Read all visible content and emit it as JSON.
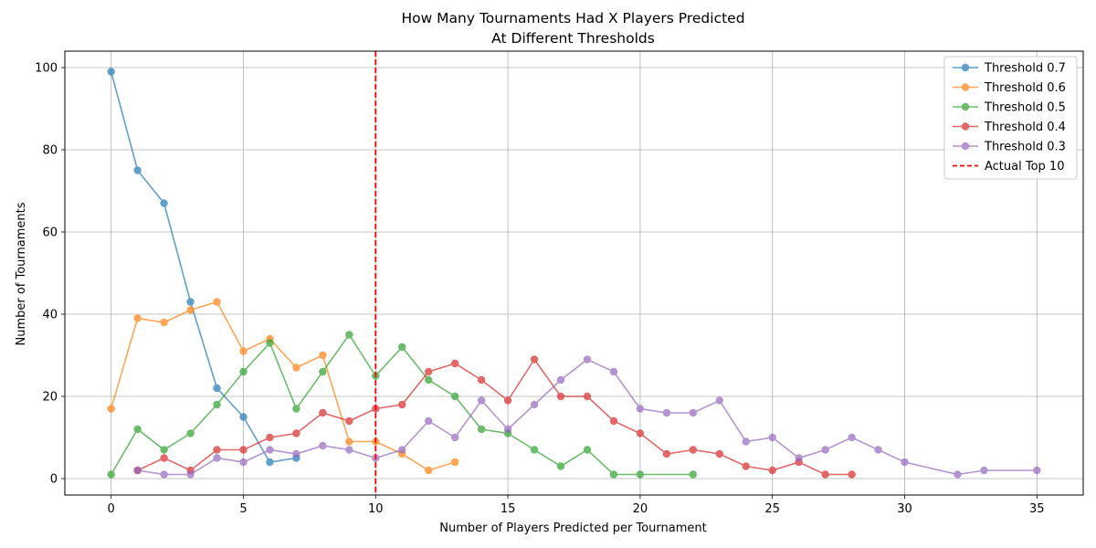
{
  "chart_data": {
    "type": "line",
    "title": "How Many Tournaments Had X Players Predicted",
    "subtitle": "At Different Thresholds",
    "xlabel": "Number of Players Predicted per Tournament",
    "ylabel": "Number of Tournaments",
    "xlim": [
      -1.75,
      36.75
    ],
    "ylim": [
      -4,
      104
    ],
    "xticks": [
      "0",
      "5",
      "10",
      "15",
      "20",
      "25",
      "30",
      "35"
    ],
    "yticks": [
      "0",
      "20",
      "40",
      "60",
      "80",
      "100"
    ],
    "grid": true,
    "legend_position": "top-right",
    "series": [
      {
        "name": "Threshold 0.7",
        "color": "#1f77b4",
        "x": [
          0,
          1,
          2,
          3,
          4,
          5,
          6,
          7
        ],
        "y": [
          99,
          75,
          67,
          43,
          22,
          15,
          4,
          5
        ]
      },
      {
        "name": "Threshold 0.6",
        "color": "#ff7f0e",
        "x": [
          0,
          1,
          2,
          3,
          4,
          5,
          6,
          7,
          8,
          9,
          10,
          11,
          12,
          13
        ],
        "y": [
          17,
          39,
          38,
          41,
          43,
          31,
          34,
          27,
          30,
          9,
          9,
          6,
          2,
          4
        ]
      },
      {
        "name": "Threshold 0.5",
        "color": "#2ca02c",
        "x": [
          0,
          1,
          2,
          3,
          4,
          5,
          6,
          7,
          8,
          9,
          10,
          11,
          12,
          13,
          14,
          15,
          16,
          17,
          18,
          19,
          20,
          22
        ],
        "y": [
          1,
          12,
          7,
          11,
          18,
          26,
          33,
          17,
          26,
          35,
          25,
          32,
          24,
          20,
          12,
          11,
          7,
          3,
          7,
          1,
          1,
          1
        ]
      },
      {
        "name": "Threshold 0.4",
        "color": "#d62728",
        "x": [
          1,
          2,
          3,
          4,
          5,
          6,
          7,
          8,
          9,
          10,
          11,
          12,
          13,
          14,
          15,
          16,
          17,
          18,
          19,
          20,
          21,
          22,
          23,
          24,
          25,
          26,
          27,
          28
        ],
        "y": [
          2,
          5,
          2,
          7,
          7,
          10,
          11,
          16,
          14,
          17,
          18,
          26,
          28,
          24,
          19,
          29,
          20,
          20,
          14,
          11,
          6,
          7,
          6,
          3,
          2,
          4,
          1,
          1
        ]
      },
      {
        "name": "Threshold 0.3",
        "color": "#9467bd",
        "x": [
          1,
          2,
          3,
          4,
          5,
          6,
          7,
          8,
          9,
          10,
          11,
          12,
          13,
          14,
          15,
          16,
          17,
          18,
          19,
          20,
          21,
          22,
          23,
          24,
          25,
          26,
          27,
          28,
          29,
          30,
          32,
          33,
          35
        ],
        "y": [
          2,
          1,
          1,
          5,
          4,
          7,
          6,
          8,
          7,
          5,
          7,
          14,
          10,
          19,
          12,
          18,
          24,
          29,
          26,
          17,
          16,
          16,
          19,
          9,
          10,
          5,
          7,
          10,
          7,
          4,
          1,
          2,
          2
        ]
      }
    ],
    "reference_line": {
      "name": "Actual Top 10",
      "x": 10,
      "color": "#ff0000",
      "style": "dashed"
    }
  }
}
